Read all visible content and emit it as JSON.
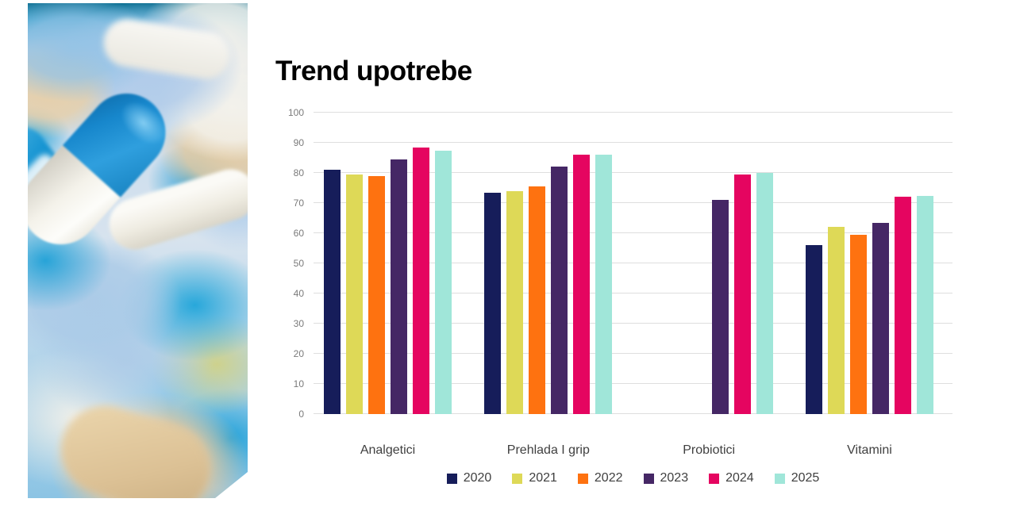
{
  "colors": {
    "background": "#ffffff",
    "gridline": "#dedede",
    "axis_label": "#7a7a7a",
    "label_text": "#3f3f3f",
    "title": "#000000"
  },
  "chart_data": {
    "type": "bar",
    "title": "Trend upotrebe",
    "categories": [
      "Analgetici",
      "Prehlada I grip",
      "Probiotici",
      "Vitamini"
    ],
    "series": [
      {
        "name": "2020",
        "color": "#161d5a",
        "values": [
          81,
          73.5,
          null,
          56
        ]
      },
      {
        "name": "2021",
        "color": "#ded957",
        "values": [
          79.5,
          74,
          null,
          62
        ]
      },
      {
        "name": "2022",
        "color": "#fe7210",
        "values": [
          79,
          75.5,
          null,
          59.5
        ]
      },
      {
        "name": "2023",
        "color": "#452765",
        "values": [
          84.5,
          82,
          71,
          63.5
        ]
      },
      {
        "name": "2024",
        "color": "#e50560",
        "values": [
          88.5,
          86,
          79.5,
          72
        ]
      },
      {
        "name": "2025",
        "color": "#a0e6d9",
        "values": [
          87.5,
          86,
          80,
          72.5
        ]
      }
    ],
    "xlabel": "",
    "ylabel": "",
    "ylim": [
      0,
      100
    ],
    "yticks": [
      0,
      10,
      20,
      30,
      40,
      50,
      60,
      70,
      80,
      90,
      100
    ],
    "grid": true,
    "legend_position": "bottom"
  }
}
